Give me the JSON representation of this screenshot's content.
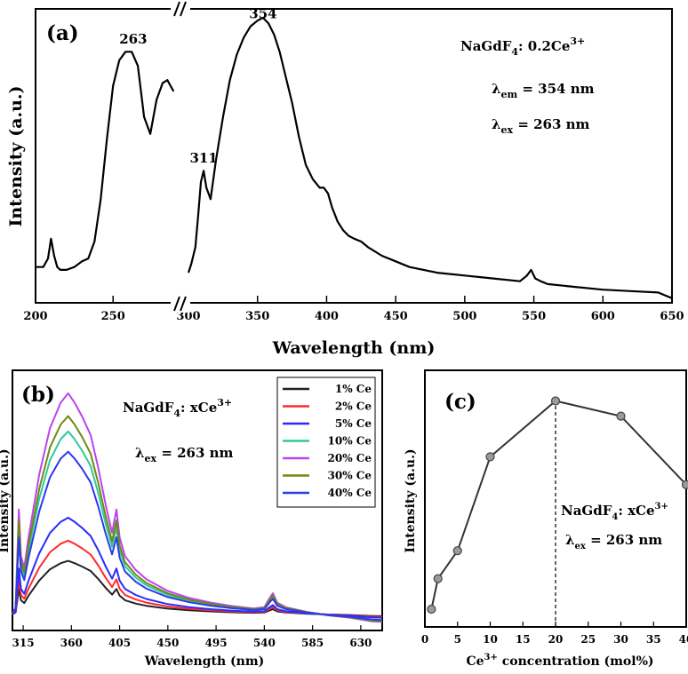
{
  "chart_data": [
    {
      "id": "a",
      "type": "line",
      "panel_label": "(a)",
      "xlabel": "Wavelength (nm)",
      "ylabel": "Intensity (a.u.)",
      "xlim": [
        200,
        650
      ],
      "axis_break": [
        290,
        300
      ],
      "x_ticks": [
        "200",
        "250",
        "300",
        "350",
        "400",
        "450",
        "500",
        "550",
        "600",
        "650"
      ],
      "ylim": [
        0,
        1
      ],
      "annotations": {
        "compound_prefix": "NaGdF",
        "compound_sub": "4",
        "compound_mid": ": 0.2Ce",
        "compound_sup": "3+",
        "em_symbol": "λ",
        "em_sub": "em",
        "em_value": " = 354 nm",
        "ex_symbol": "λ",
        "ex_sub": "ex",
        "ex_value": " = 263 nm"
      },
      "peak_labels": [
        {
          "x": 263,
          "y": 0.89,
          "label": "263"
        },
        {
          "x": 354,
          "y": 0.98,
          "label": "354"
        },
        {
          "x": 311,
          "y": 0.47,
          "label": "311"
        }
      ],
      "series": [
        {
          "name": "excitation",
          "x": [
            200,
            205,
            208,
            210,
            212,
            214,
            216,
            220,
            225,
            230,
            234,
            238,
            242,
            246,
            250,
            254,
            258,
            262,
            266,
            270,
            274,
            278,
            282,
            285,
            287,
            289
          ],
          "y": [
            0.12,
            0.12,
            0.15,
            0.22,
            0.16,
            0.12,
            0.11,
            0.11,
            0.12,
            0.14,
            0.15,
            0.21,
            0.36,
            0.57,
            0.76,
            0.85,
            0.88,
            0.88,
            0.83,
            0.65,
            0.59,
            0.71,
            0.77,
            0.78,
            0.76,
            0.74
          ]
        },
        {
          "name": "emission",
          "x": [
            300,
            302,
            305,
            307,
            309,
            311,
            313,
            316,
            320,
            325,
            330,
            335,
            340,
            345,
            350,
            354,
            358,
            362,
            366,
            370,
            375,
            380,
            385,
            390,
            395,
            398,
            401,
            404,
            408,
            412,
            416,
            420,
            425,
            430,
            440,
            450,
            460,
            480,
            500,
            520,
            540,
            545,
            548,
            551,
            555,
            560,
            580,
            600,
            620,
            640,
            645,
            650
          ],
          "y": [
            0.1,
            0.13,
            0.19,
            0.3,
            0.42,
            0.46,
            0.4,
            0.36,
            0.5,
            0.65,
            0.78,
            0.87,
            0.93,
            0.97,
            0.99,
            1.0,
            0.98,
            0.94,
            0.88,
            0.8,
            0.7,
            0.58,
            0.48,
            0.43,
            0.4,
            0.4,
            0.38,
            0.33,
            0.28,
            0.25,
            0.23,
            0.22,
            0.21,
            0.19,
            0.16,
            0.14,
            0.12,
            0.1,
            0.09,
            0.08,
            0.07,
            0.09,
            0.11,
            0.08,
            0.07,
            0.06,
            0.05,
            0.04,
            0.035,
            0.03,
            0.02,
            0.01
          ]
        }
      ]
    },
    {
      "id": "b",
      "type": "line",
      "panel_label": "(b)",
      "xlabel": "Wavelength (nm)",
      "ylabel": "Intensity (a.u.)",
      "xlim": [
        305,
        650
      ],
      "x_ticks": [
        "315",
        "360",
        "405",
        "450",
        "495",
        "540",
        "585",
        "630"
      ],
      "ylim": [
        0,
        1
      ],
      "annotations": {
        "compound_prefix": "NaGdF",
        "compound_sub": "4",
        "compound_mid": ": xCe",
        "compound_sup": "3+",
        "ex_symbol": "λ",
        "ex_sub": "ex",
        "ex_value": " = 263 nm"
      },
      "x": [
        305,
        308,
        311,
        313,
        316,
        320,
        330,
        340,
        350,
        357,
        363,
        370,
        378,
        385,
        392,
        398,
        402,
        405,
        410,
        420,
        430,
        450,
        470,
        490,
        510,
        530,
        540,
        545,
        548,
        552,
        560,
        580,
        600,
        620,
        640,
        650
      ],
      "shape": [
        0.05,
        0.08,
        0.5,
        0.3,
        0.25,
        0.38,
        0.65,
        0.85,
        0.96,
        1.0,
        0.96,
        0.9,
        0.82,
        0.68,
        0.52,
        0.4,
        0.5,
        0.38,
        0.3,
        0.24,
        0.2,
        0.15,
        0.12,
        0.1,
        0.085,
        0.075,
        0.08,
        0.12,
        0.14,
        0.1,
        0.08,
        0.06,
        0.045,
        0.035,
        0.02,
        0.015
      ],
      "series": [
        {
          "name": "1% Ce",
          "color": "#222222",
          "peak": 0.21
        },
        {
          "name": "2% Ce",
          "color": "#ff2a2a",
          "peak": 0.29
        },
        {
          "name": "5% Ce",
          "color": "#2a2aff",
          "peak": 0.38
        },
        {
          "name": "10% Ce",
          "color": "#2ec99a",
          "peak": 0.72
        },
        {
          "name": "20% Ce",
          "color": "#bb44ee",
          "peak": 0.87
        },
        {
          "name": "30% Ce",
          "color": "#6e8a12",
          "peak": 0.78
        },
        {
          "name": "40% Ce",
          "color": "#2a3aef",
          "peak": 0.64
        }
      ]
    },
    {
      "id": "c",
      "type": "line",
      "panel_label": "(c)",
      "xlabel_prefix": "Ce",
      "xlabel_sup": "3+",
      "xlabel_rest": " concentration (mol%)",
      "ylabel": "Intensity (a.u.)",
      "xlim": [
        0,
        40
      ],
      "x_ticks": [
        "0",
        "5",
        "10",
        "15",
        "20",
        "25",
        "30",
        "35",
        "40"
      ],
      "ylim": [
        0,
        1
      ],
      "dashed_at_x": 20,
      "annotations": {
        "compound_prefix": "NaGdF",
        "compound_sub": "4",
        "compound_mid": ": xCe",
        "compound_sup": "3+",
        "ex_symbol": "λ",
        "ex_sub": "ex",
        "ex_value": " = 263 nm"
      },
      "x": [
        1,
        2,
        5,
        10,
        20,
        30,
        40
      ],
      "y": [
        0.07,
        0.19,
        0.3,
        0.67,
        0.89,
        0.83,
        0.56
      ]
    }
  ]
}
